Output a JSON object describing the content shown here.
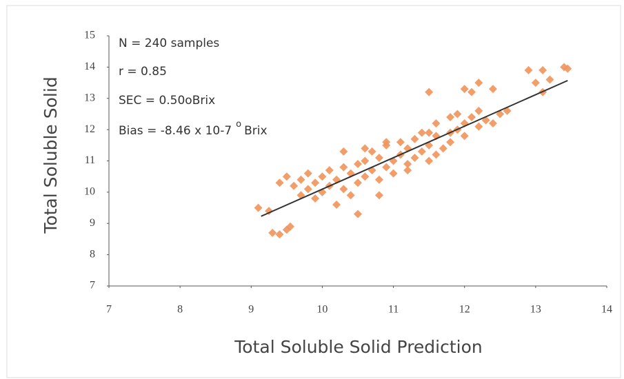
{
  "chart_data": {
    "type": "scatter",
    "xlabel": "Total Soluble Solid Prediction",
    "ylabel": "Total Soluble Solid",
    "annotations": [
      "N = 240 samples",
      "r = 0.85",
      "SEC = 0.50oBrix",
      "Bias = -8.46 x 10-7"
    ],
    "bias_superscript": "o",
    "bias_unit": "Brix",
    "color": "#f0935a",
    "line_color": "#333333",
    "xlim": [
      7,
      14
    ],
    "xticks": [
      7,
      8,
      9,
      10,
      11,
      12,
      13,
      14
    ],
    "ylim": [
      7,
      15
    ],
    "yticks": [
      7,
      8,
      9,
      10,
      11,
      12,
      13,
      14,
      15
    ],
    "trendline": {
      "x": [
        9.14,
        13.45
      ],
      "y": [
        9.23,
        13.57
      ]
    },
    "x": [
      9.1,
      9.25,
      9.3,
      9.4,
      9.5,
      9.55,
      9.4,
      9.5,
      9.6,
      9.7,
      9.7,
      9.8,
      9.8,
      9.9,
      9.9,
      10.0,
      10.0,
      10.1,
      10.1,
      10.2,
      10.2,
      10.3,
      10.3,
      10.4,
      10.4,
      10.5,
      10.5,
      10.5,
      10.6,
      10.6,
      10.7,
      10.7,
      10.8,
      10.8,
      10.9,
      10.9,
      11.0,
      11.0,
      11.1,
      11.1,
      11.2,
      11.2,
      11.3,
      11.3,
      11.4,
      11.4,
      11.5,
      11.5,
      11.6,
      11.6,
      11.7,
      11.8,
      11.8,
      11.9,
      11.9,
      12.0,
      12.0,
      12.1,
      12.2,
      12.2,
      12.3,
      12.4,
      12.5,
      12.6,
      12.0,
      12.2,
      12.4,
      11.5,
      12.1,
      12.9,
      13.1,
      13.0,
      13.1,
      13.2,
      13.4,
      13.45,
      10.3,
      10.6,
      10.9,
      11.6,
      11.2,
      10.8,
      11.5,
      11.8
    ],
    "y": [
      9.5,
      9.4,
      8.7,
      8.65,
      8.8,
      8.9,
      10.3,
      10.5,
      10.2,
      10.4,
      9.9,
      10.6,
      10.1,
      10.3,
      9.8,
      10.5,
      10.0,
      10.7,
      10.2,
      9.6,
      10.4,
      10.8,
      10.1,
      10.6,
      9.9,
      10.9,
      10.3,
      9.3,
      11.0,
      10.5,
      10.7,
      11.3,
      10.4,
      11.1,
      10.8,
      11.5,
      11.0,
      10.6,
      11.2,
      11.6,
      10.9,
      11.4,
      11.7,
      11.1,
      11.3,
      11.9,
      11.5,
      11.0,
      11.8,
      12.2,
      11.4,
      11.9,
      11.6,
      12.5,
      12.0,
      12.2,
      11.8,
      12.4,
      12.6,
      12.1,
      12.3,
      12.2,
      12.5,
      12.6,
      13.3,
      13.5,
      13.3,
      13.2,
      13.2,
      13.9,
      13.9,
      13.5,
      13.2,
      13.6,
      14.0,
      13.95,
      11.3,
      11.4,
      11.6,
      11.2,
      10.7,
      9.9,
      11.9,
      12.4
    ]
  }
}
